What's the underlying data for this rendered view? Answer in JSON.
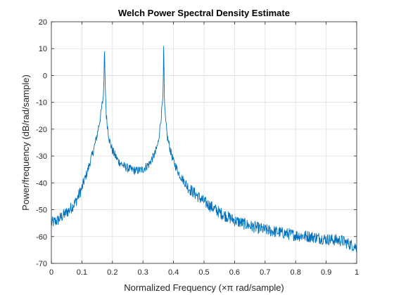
{
  "chart_data": {
    "type": "line",
    "title": "Welch Power Spectral Density Estimate",
    "xlabel": "Normalized Frequency  (×π rad/sample)",
    "ylabel": "Power/frequency (dB/rad/sample)",
    "xlim": [
      0,
      1
    ],
    "ylim": [
      -70,
      20
    ],
    "xticks": [
      0,
      0.1,
      0.2,
      0.3,
      0.4,
      0.5,
      0.6,
      0.7,
      0.8,
      0.9,
      1
    ],
    "xtick_labels": [
      "0",
      "0.1",
      "0.2",
      "0.3",
      "0.4",
      "0.5",
      "0.6",
      "0.7",
      "0.8",
      "0.9",
      "1"
    ],
    "yticks": [
      -70,
      -60,
      -50,
      -40,
      -30,
      -20,
      -10,
      0,
      10,
      20
    ],
    "ytick_labels": [
      "-70",
      "-60",
      "-50",
      "-40",
      "-30",
      "-20",
      "-10",
      "0",
      "10",
      "20"
    ],
    "grid": true,
    "line_color": "#0072BD",
    "series": [
      {
        "x": [
          0,
          0.02,
          0.04,
          0.06,
          0.08,
          0.1,
          0.12,
          0.14,
          0.15,
          0.16,
          0.165,
          0.17,
          0.172,
          0.174,
          0.176,
          0.178,
          0.18,
          0.185,
          0.19,
          0.2,
          0.22,
          0.24,
          0.26,
          0.28,
          0.3,
          0.32,
          0.34,
          0.35,
          0.355,
          0.36,
          0.364,
          0.366,
          0.368,
          0.37,
          0.372,
          0.375,
          0.38,
          0.39,
          0.4,
          0.42,
          0.45,
          0.48,
          0.5,
          0.55,
          0.6,
          0.65,
          0.7,
          0.75,
          0.8,
          0.85,
          0.9,
          0.95,
          1.0
        ],
        "values": [
          -55,
          -54,
          -52,
          -50,
          -47,
          -42,
          -35,
          -27,
          -22,
          -16,
          -12,
          -8,
          -3,
          12,
          -2,
          -9,
          -15,
          -20,
          -24,
          -28,
          -32,
          -34,
          -35,
          -35.5,
          -35,
          -33,
          -29,
          -25,
          -20,
          -15,
          -10,
          -6,
          13,
          -8,
          -14,
          -18,
          -23,
          -28,
          -32,
          -37,
          -42,
          -45,
          -47,
          -51,
          -54,
          -56,
          -57.5,
          -58.5,
          -59.5,
          -60,
          -61,
          -61.5,
          -64
        ]
      }
    ]
  }
}
